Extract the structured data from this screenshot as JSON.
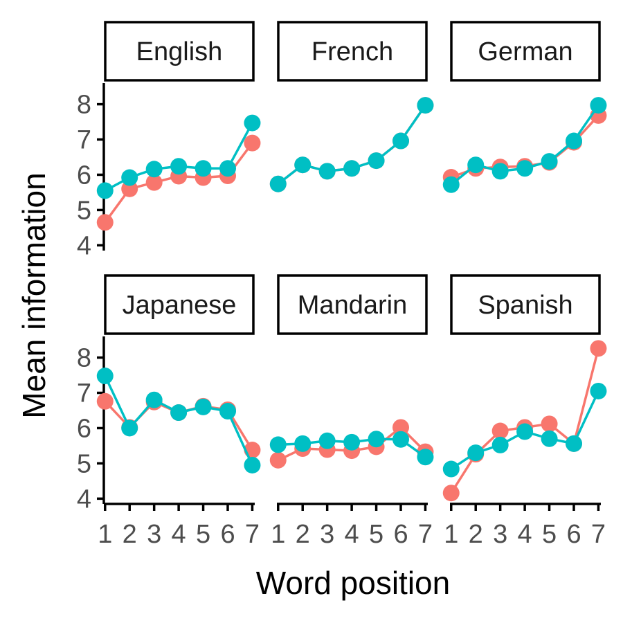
{
  "chart_data": {
    "type": "line",
    "xlabel": "Word position",
    "ylabel": "Mean information",
    "x_ticks": [
      "1",
      "2",
      "3",
      "4",
      "5",
      "6",
      "7"
    ],
    "y_ticks": [
      "4",
      "5",
      "6",
      "7",
      "8"
    ],
    "xlim": [
      0.95,
      7.1
    ],
    "ylim": [
      3.85,
      8.6
    ],
    "series_colors": [
      "#F8766D",
      "#00BFC4"
    ],
    "grid": false,
    "legend": "none",
    "panels": [
      {
        "name": "English",
        "series": [
          {
            "color": "#F8766D",
            "values": [
              4.65,
              5.6,
              5.78,
              5.96,
              5.92,
              5.97,
              6.9
            ]
          },
          {
            "color": "#00BFC4",
            "values": [
              5.55,
              5.92,
              6.16,
              6.24,
              6.18,
              6.18,
              7.47
            ]
          }
        ]
      },
      {
        "name": "French",
        "series": [
          {
            "color": "#F8766D",
            "values": [
              5.74,
              6.28,
              6.1,
              6.18,
              6.4,
              6.96,
              7.97
            ]
          },
          {
            "color": "#00BFC4",
            "values": [
              5.74,
              6.28,
              6.1,
              6.18,
              6.4,
              6.96,
              7.97
            ]
          }
        ]
      },
      {
        "name": "German",
        "series": [
          {
            "color": "#F8766D",
            "values": [
              5.93,
              6.18,
              6.22,
              6.24,
              6.35,
              6.92,
              7.68
            ]
          },
          {
            "color": "#00BFC4",
            "values": [
              5.72,
              6.28,
              6.1,
              6.18,
              6.38,
              6.96,
              7.97
            ]
          }
        ]
      },
      {
        "name": "Japanese",
        "series": [
          {
            "color": "#F8766D",
            "values": [
              6.76,
              6.02,
              6.74,
              6.44,
              6.62,
              6.52,
              5.38
            ]
          },
          {
            "color": "#00BFC4",
            "values": [
              7.48,
              6.0,
              6.8,
              6.44,
              6.6,
              6.48,
              4.95
            ]
          }
        ]
      },
      {
        "name": "Mandarin",
        "series": [
          {
            "color": "#F8766D",
            "values": [
              5.09,
              5.42,
              5.39,
              5.36,
              5.47,
              6.02,
              5.33
            ]
          },
          {
            "color": "#00BFC4",
            "values": [
              5.53,
              5.56,
              5.64,
              5.6,
              5.69,
              5.68,
              5.18
            ]
          }
        ]
      },
      {
        "name": "Spanish",
        "series": [
          {
            "color": "#F8766D",
            "values": [
              4.16,
              5.26,
              5.92,
              6.02,
              6.12,
              5.56,
              8.26
            ]
          },
          {
            "color": "#00BFC4",
            "values": [
              4.84,
              5.3,
              5.52,
              5.9,
              5.7,
              5.56,
              7.05
            ]
          }
        ]
      }
    ]
  }
}
